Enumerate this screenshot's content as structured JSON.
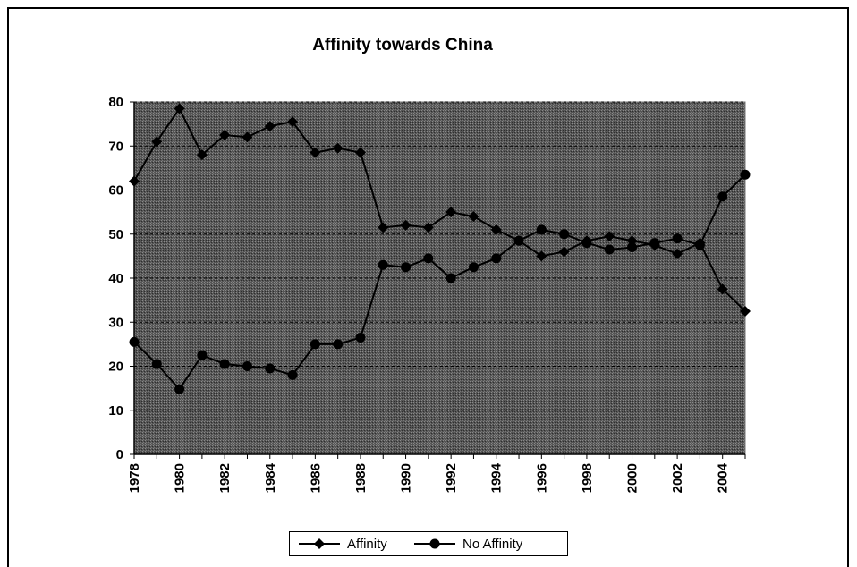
{
  "chart_data": {
    "type": "line",
    "title": "Affinity towards China",
    "xlabel": "",
    "ylabel": "",
    "ylim": [
      0,
      80
    ],
    "yticks": [
      0,
      10,
      20,
      30,
      40,
      50,
      60,
      70,
      80
    ],
    "x": [
      1978,
      1979,
      1980,
      1981,
      1982,
      1983,
      1984,
      1985,
      1986,
      1987,
      1988,
      1989,
      1990,
      1991,
      1992,
      1993,
      1994,
      1995,
      1996,
      1997,
      1998,
      1999,
      2000,
      2001,
      2002,
      2003,
      2004,
      2005
    ],
    "xtick_labels": [
      "1978",
      "1980",
      "1982",
      "1984",
      "1986",
      "1988",
      "1990",
      "1992",
      "1994",
      "1996",
      "1998",
      "2000",
      "2002",
      "2004"
    ],
    "series": [
      {
        "name": "Affinity",
        "marker": "diamond",
        "values": [
          62,
          71,
          78.5,
          68,
          72.5,
          72,
          74.5,
          75.5,
          68.5,
          69.5,
          68.5,
          51.5,
          52,
          51.5,
          55,
          54,
          51,
          48.5,
          45,
          46,
          48.5,
          49.5,
          48.5,
          47.5,
          45.5,
          48,
          37.5,
          32.5
        ]
      },
      {
        "name": "No Affinity",
        "marker": "circle",
        "values": [
          25.5,
          20.5,
          14.8,
          22.5,
          20.5,
          20,
          19.5,
          18,
          25,
          25,
          26.5,
          43,
          42.5,
          44.5,
          40,
          42.5,
          44.5,
          48.5,
          51,
          50,
          48,
          46.5,
          47,
          48,
          49,
          47.5,
          58.5,
          63.5
        ]
      }
    ],
    "grid": true,
    "plot_background": "#595959",
    "line_color": "#000000",
    "legend_position": "bottom"
  }
}
